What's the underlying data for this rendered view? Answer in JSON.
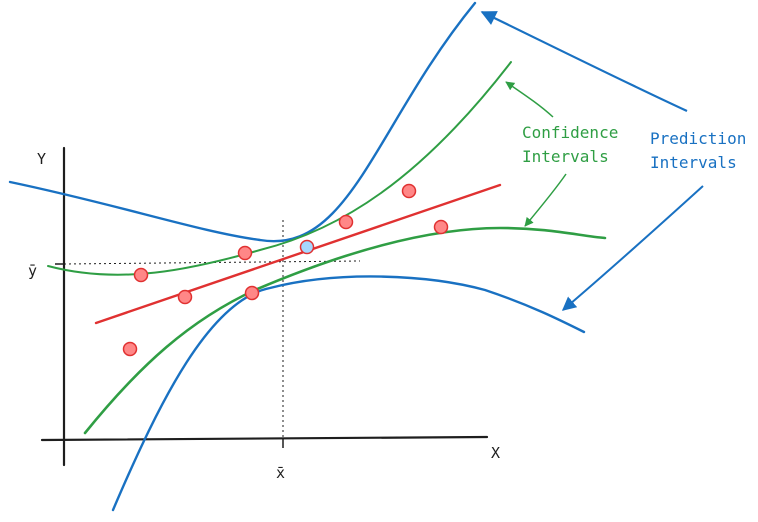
{
  "diagram": {
    "axes": {
      "y_label": "Y",
      "x_label": "X",
      "y_mean_label": "ȳ",
      "x_mean_label": "x̄"
    },
    "annotations": {
      "confidence": {
        "line1": "Confidence",
        "line2": "Intervals",
        "color": "#2f9e44"
      },
      "prediction": {
        "line1": "Prediction",
        "line2": "Intervals",
        "color": "#1971c2"
      }
    },
    "colors": {
      "regression_line": "#e03131",
      "data_point_fill": "#ff8787",
      "data_point_stroke": "#e03131",
      "confidence_curves": "#2f9e44",
      "prediction_curves": "#1971c2",
      "axes": "#1e1e1e"
    }
  }
}
